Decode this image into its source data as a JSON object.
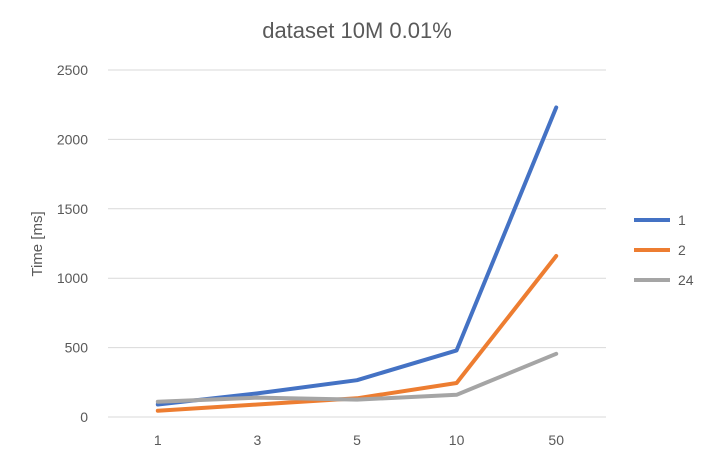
{
  "chart_data": {
    "type": "line",
    "title": "dataset 10M 0.01%",
    "xlabel": "",
    "ylabel": "Time [ms]",
    "categories": [
      "1",
      "3",
      "5",
      "10",
      "50"
    ],
    "ylim": [
      0,
      2500
    ],
    "yticks": [
      0,
      500,
      1000,
      1500,
      2000,
      2500
    ],
    "grid": true,
    "legend_position": "right",
    "series": [
      {
        "name": "1",
        "color": "#4472C4",
        "values": [
          90,
          170,
          265,
          480,
          2230
        ]
      },
      {
        "name": "2",
        "color": "#ED7D31",
        "values": [
          45,
          90,
          135,
          245,
          1160
        ]
      },
      {
        "name": "24",
        "color": "#A5A5A5",
        "values": [
          110,
          140,
          125,
          160,
          455
        ]
      }
    ]
  }
}
